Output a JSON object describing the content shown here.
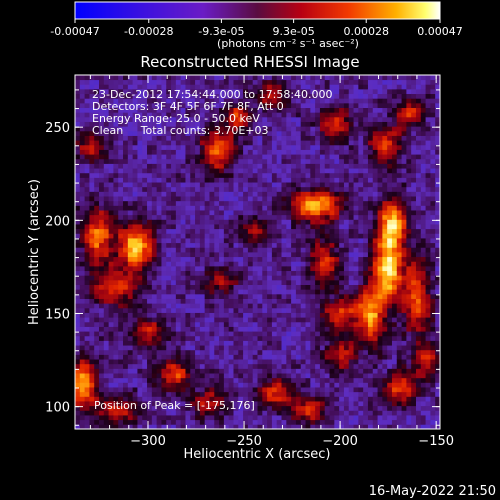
{
  "colorbar": {
    "ticks": [
      "-0.00047",
      "-0.00028",
      "-9.3e-05",
      "9.3e-05",
      "0.00028",
      "0.00047"
    ],
    "tick_values": [
      -0.00047,
      -0.00028,
      -9.3e-05,
      9.3e-05,
      0.00028,
      0.00047
    ],
    "range": [
      -0.00047,
      0.00047
    ],
    "units": "(photons cm⁻² s⁻¹ asec⁻²)"
  },
  "plot": {
    "title": "Reconstructed RHESSI Image",
    "annotations": [
      "23-Dec-2012 17:54:44.000 to 17:58:40.000",
      "Detectors: 3F 4F 5F 6F 7F 8F, Att 0",
      "Energy Range: 25.0 - 50.0 keV",
      "Clean     Total counts: 3.70E+03"
    ],
    "peak_label": "Position of Peak = [-175,176]"
  },
  "footer": {
    "timestamp": "16-May-2022 21:50"
  },
  "colors": {
    "background": "#000000",
    "foreground": "#ffffff"
  },
  "chart_data": {
    "type": "heatmap",
    "title": "Reconstructed RHESSI Image",
    "xlabel": "Heliocentric X (arcsec)",
    "ylabel": "Heliocentric Y (arcsec)",
    "xlim": [
      -338,
      -148
    ],
    "ylim": [
      88,
      278
    ],
    "xticks": [
      -300,
      -250,
      -200,
      -150
    ],
    "xtick_labels": [
      "−300",
      "−250",
      "−200",
      "−150"
    ],
    "yticks": [
      100,
      150,
      200,
      250
    ],
    "ytick_labels": [
      "100",
      "150",
      "200",
      "250"
    ],
    "peak_position": [
      -175,
      176
    ],
    "colormap": "blue-purple-red-yellow-white",
    "sources": [
      {
        "x": -175,
        "y": 176,
        "amp": 1.0,
        "sx": 5,
        "sy": 14
      },
      {
        "x": -172,
        "y": 200,
        "amp": 0.8,
        "sx": 5,
        "sy": 8
      },
      {
        "x": -184,
        "y": 150,
        "amp": 0.7,
        "sx": 5,
        "sy": 12
      },
      {
        "x": -160,
        "y": 160,
        "amp": 0.65,
        "sx": 5,
        "sy": 14
      },
      {
        "x": -212,
        "y": 208,
        "amp": 0.85,
        "sx": 9,
        "sy": 6
      },
      {
        "x": -208,
        "y": 178,
        "amp": 0.6,
        "sx": 5,
        "sy": 8
      },
      {
        "x": -200,
        "y": 150,
        "amp": 0.55,
        "sx": 7,
        "sy": 6
      },
      {
        "x": -200,
        "y": 128,
        "amp": 0.5,
        "sx": 6,
        "sy": 6
      },
      {
        "x": -306,
        "y": 186,
        "amp": 0.9,
        "sx": 6,
        "sy": 9
      },
      {
        "x": -326,
        "y": 192,
        "amp": 0.7,
        "sx": 6,
        "sy": 10
      },
      {
        "x": -318,
        "y": 165,
        "amp": 0.6,
        "sx": 8,
        "sy": 7
      },
      {
        "x": -300,
        "y": 140,
        "amp": 0.5,
        "sx": 7,
        "sy": 6
      },
      {
        "x": -334,
        "y": 112,
        "amp": 0.85,
        "sx": 5,
        "sy": 9
      },
      {
        "x": -286,
        "y": 117,
        "amp": 0.6,
        "sx": 6,
        "sy": 6
      },
      {
        "x": -316,
        "y": 99,
        "amp": 0.5,
        "sx": 7,
        "sy": 5
      },
      {
        "x": -264,
        "y": 237,
        "amp": 0.7,
        "sx": 6,
        "sy": 7
      },
      {
        "x": -254,
        "y": 255,
        "amp": 0.55,
        "sx": 5,
        "sy": 6
      },
      {
        "x": -236,
        "y": 267,
        "amp": 0.5,
        "sx": 6,
        "sy": 5
      },
      {
        "x": -202,
        "y": 252,
        "amp": 0.5,
        "sx": 6,
        "sy": 6
      },
      {
        "x": -176,
        "y": 240,
        "amp": 0.6,
        "sx": 6,
        "sy": 7
      },
      {
        "x": -165,
        "y": 258,
        "amp": 0.5,
        "sx": 6,
        "sy": 5
      },
      {
        "x": -233,
        "y": 108,
        "amp": 0.6,
        "sx": 7,
        "sy": 5
      },
      {
        "x": -216,
        "y": 98,
        "amp": 0.55,
        "sx": 6,
        "sy": 5
      },
      {
        "x": -268,
        "y": 102,
        "amp": 0.5,
        "sx": 6,
        "sy": 5
      },
      {
        "x": -168,
        "y": 110,
        "amp": 0.6,
        "sx": 6,
        "sy": 6
      },
      {
        "x": -155,
        "y": 125,
        "amp": 0.5,
        "sx": 5,
        "sy": 7
      },
      {
        "x": -245,
        "y": 195,
        "amp": 0.45,
        "sx": 5,
        "sy": 5
      },
      {
        "x": -262,
        "y": 168,
        "amp": 0.4,
        "sx": 6,
        "sy": 6
      },
      {
        "x": -330,
        "y": 240,
        "amp": 0.45,
        "sx": 6,
        "sy": 6
      }
    ]
  }
}
